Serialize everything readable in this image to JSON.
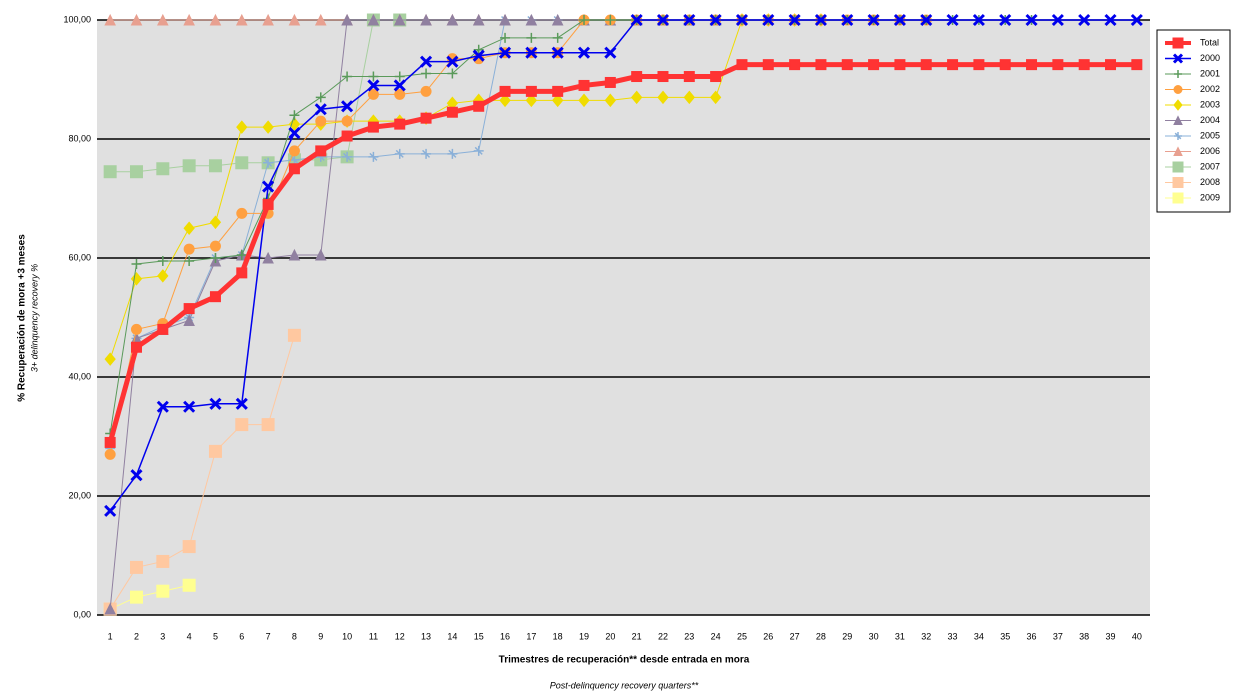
{
  "chart_data": {
    "type": "line",
    "y_label": "% Recuperación de mora +3 meses",
    "y_sublabel": "3+ delinquency recovery %",
    "x_label": "Trimestres de recuperación** desde entrada en mora",
    "x_sublabel": "Post-delinquency recovery quarters**",
    "categories": [
      1,
      2,
      3,
      4,
      5,
      6,
      7,
      8,
      9,
      10,
      11,
      12,
      13,
      14,
      15,
      16,
      17,
      18,
      19,
      20,
      21,
      22,
      23,
      24,
      25,
      26,
      27,
      28,
      29,
      30,
      31,
      32,
      33,
      34,
      35,
      36,
      37,
      38,
      39,
      40
    ],
    "ylim": [
      0,
      100
    ],
    "yticks": [
      {
        "value": 0,
        "label": "0,00"
      },
      {
        "value": 20,
        "label": "20,00"
      },
      {
        "value": 40,
        "label": "40,00"
      },
      {
        "value": 60,
        "label": "60,00"
      },
      {
        "value": 80,
        "label": "80,00"
      },
      {
        "value": 100,
        "label": "100,00"
      }
    ],
    "grid": true,
    "legend": "right",
    "series": [
      {
        "name": "Total",
        "color": "#ff3333",
        "marker": "square",
        "width": 5,
        "values": [
          29,
          45,
          48,
          51.5,
          53.5,
          57.5,
          69,
          75,
          78,
          80.5,
          82,
          82.5,
          83.5,
          84.5,
          85.5,
          88,
          88,
          88,
          89,
          89.5,
          90.5,
          90.5,
          90.5,
          90.5,
          92.5,
          92.5,
          92.5,
          92.5,
          92.5,
          92.5,
          92.5,
          92.5,
          92.5,
          92.5,
          92.5,
          92.5,
          92.5,
          92.5,
          92.5,
          92.5
        ]
      },
      {
        "name": "2000",
        "color": "#0000ee",
        "marker": "x",
        "width": 1.5,
        "values": [
          17.5,
          23.5,
          35,
          35,
          35.5,
          35.5,
          72,
          81,
          85,
          85.5,
          89,
          89,
          93,
          93,
          94,
          94.5,
          94.5,
          94.5,
          94.5,
          94.5,
          100,
          100,
          100,
          100,
          100,
          100,
          100,
          100,
          100,
          100,
          100,
          100,
          100,
          100,
          100,
          100,
          100,
          100,
          100,
          100
        ]
      },
      {
        "name": "2001",
        "color": "#5a9a5a",
        "marker": "plus",
        "width": 1,
        "values": [
          30.5,
          59,
          59.5,
          59.5,
          60,
          60.5,
          70,
          84,
          87,
          90.5,
          90.5,
          90.5,
          91,
          91,
          95,
          97,
          97,
          97,
          100,
          100,
          100,
          100,
          100,
          100,
          100,
          100,
          100,
          100,
          100,
          100,
          100,
          100,
          100,
          100,
          100,
          100,
          null,
          null,
          null,
          null
        ]
      },
      {
        "name": "2002",
        "color": "#ffa040",
        "marker": "circle",
        "width": 1,
        "values": [
          27,
          48,
          49,
          61.5,
          62,
          67.5,
          67.5,
          78,
          83,
          83,
          87.5,
          87.5,
          88,
          93.5,
          93.5,
          94.5,
          94.5,
          94.5,
          100,
          100,
          100,
          100,
          100,
          100,
          100,
          100,
          100,
          100,
          100,
          100,
          100,
          100,
          null,
          null,
          null,
          null,
          null,
          null,
          null,
          null
        ]
      },
      {
        "name": "2003",
        "color": "#f0dc00",
        "marker": "diamond",
        "width": 1,
        "values": [
          43,
          56.5,
          57,
          65,
          66,
          82,
          82,
          82.5,
          82.5,
          83,
          83,
          83,
          83.5,
          86,
          86.5,
          86.5,
          86.5,
          86.5,
          86.5,
          86.5,
          87,
          87,
          87,
          87,
          100,
          100,
          100,
          100,
          null,
          null,
          null,
          null,
          null,
          null,
          null,
          null,
          null,
          null,
          null,
          null
        ]
      },
      {
        "name": "2004",
        "color": "#9080a0",
        "marker": "triangle",
        "width": 1,
        "values": [
          1,
          46.5,
          48,
          49.5,
          59.5,
          60.5,
          60,
          60.5,
          60.5,
          100,
          100,
          100,
          100,
          100,
          100,
          100,
          100,
          100,
          100,
          100,
          100,
          100,
          100,
          100,
          null,
          null,
          null,
          null,
          null,
          null,
          null,
          null,
          null,
          null,
          null,
          null,
          null,
          null,
          null,
          null
        ]
      },
      {
        "name": "2005",
        "color": "#8ab0d8",
        "marker": "star",
        "width": 1,
        "values": [
          28,
          46.5,
          48.5,
          50,
          60,
          60.5,
          76,
          76.5,
          77,
          77,
          77,
          77.5,
          77.5,
          77.5,
          78,
          100,
          100,
          100,
          100,
          100,
          null,
          null,
          null,
          null,
          null,
          null,
          null,
          null,
          null,
          null,
          null,
          null,
          null,
          null,
          null,
          null,
          null,
          null,
          null,
          null
        ]
      },
      {
        "name": "2006",
        "color": "#e8a090",
        "marker": "triangle",
        "width": 1,
        "values": [
          100,
          100,
          100,
          100,
          100,
          100,
          100,
          100,
          100,
          100,
          100,
          100,
          100,
          100,
          100,
          100,
          null,
          null,
          null,
          null,
          null,
          null,
          null,
          null,
          null,
          null,
          null,
          null,
          null,
          null,
          null,
          null,
          null,
          null,
          null,
          null,
          null,
          null,
          null,
          null
        ]
      },
      {
        "name": "2007",
        "color": "#a8d0a0",
        "marker": "square",
        "width": 1,
        "values": [
          74.5,
          74.5,
          75,
          75.5,
          75.5,
          76,
          76,
          76.5,
          76.5,
          77,
          100,
          100,
          null,
          null,
          null,
          null,
          null,
          null,
          null,
          null,
          null,
          null,
          null,
          null,
          null,
          null,
          null,
          null,
          null,
          null,
          null,
          null,
          null,
          null,
          null,
          null,
          null,
          null,
          null,
          null
        ]
      },
      {
        "name": "2008",
        "color": "#ffc8a0",
        "marker": "square",
        "width": 1,
        "values": [
          1,
          8,
          9,
          11.5,
          27.5,
          32,
          32,
          47,
          null,
          null,
          null,
          null,
          null,
          null,
          null,
          null,
          null,
          null,
          null,
          null,
          null,
          null,
          null,
          null,
          null,
          null,
          null,
          null,
          null,
          null,
          null,
          null,
          null,
          null,
          null,
          null,
          null,
          null,
          null,
          null
        ]
      },
      {
        "name": "2009",
        "color": "#ffff90",
        "marker": "square",
        "width": 1,
        "values": [
          1,
          3,
          4,
          5,
          null,
          null,
          null,
          null,
          null,
          null,
          null,
          null,
          null,
          null,
          null,
          null,
          null,
          null,
          null,
          null,
          null,
          null,
          null,
          null,
          null,
          null,
          null,
          null,
          null,
          null,
          null,
          null,
          null,
          null,
          null,
          null,
          null,
          null,
          null,
          null
        ]
      }
    ]
  }
}
